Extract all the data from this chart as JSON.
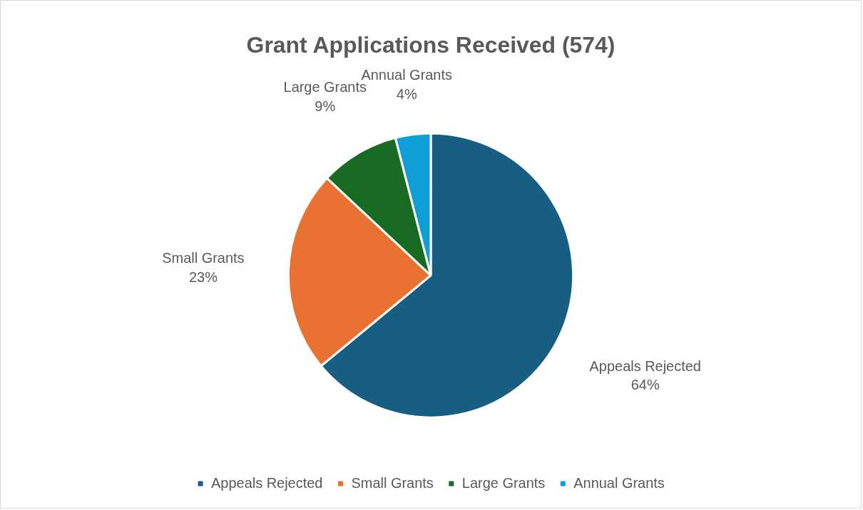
{
  "chart_data": {
    "type": "pie",
    "title": "Grant Applications Received (574)",
    "categories": [
      "Appeals Rejected",
      "Small Grants",
      "Large Grants",
      "Annual Grants"
    ],
    "values": [
      64,
      23,
      9,
      4
    ],
    "value_labels": [
      "64%",
      "23%",
      "9%",
      "4%"
    ],
    "colors": [
      "#175e82",
      "#e97132",
      "#196b24",
      "#0f9ed5"
    ],
    "legend": "bottom"
  }
}
